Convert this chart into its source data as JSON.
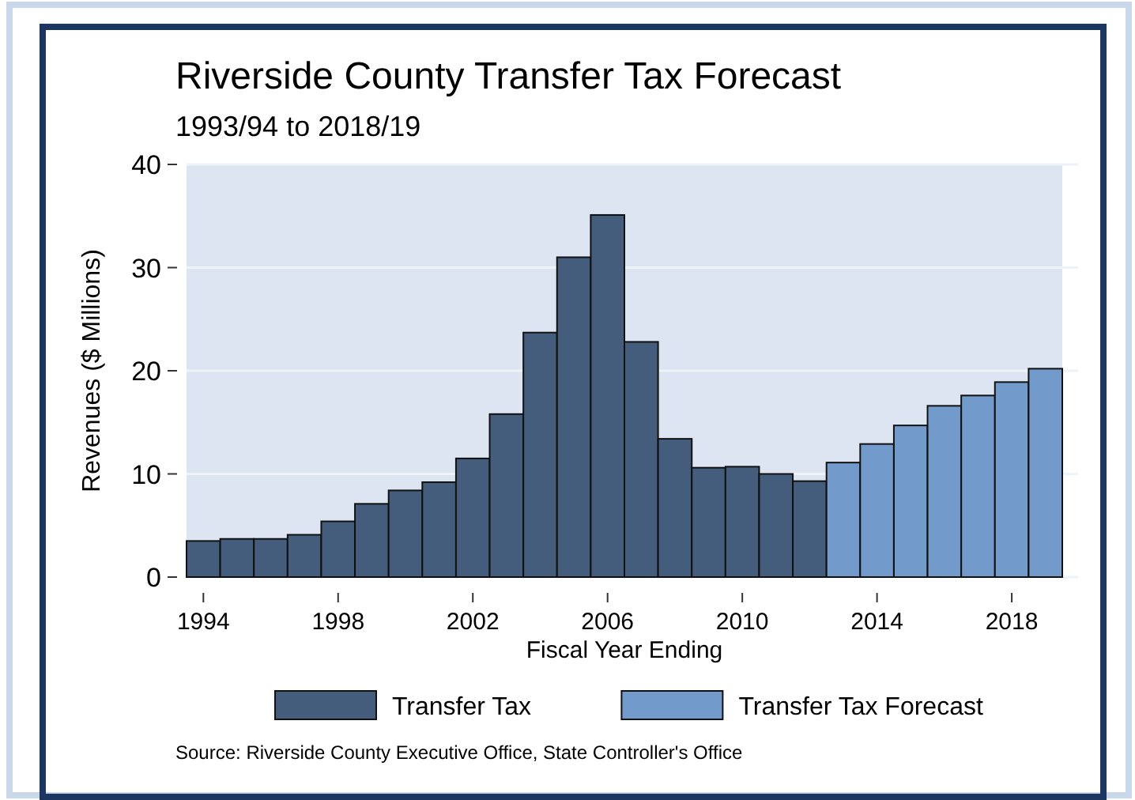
{
  "chart_data": {
    "type": "bar",
    "title": "Riverside County Transfer Tax Forecast",
    "subtitle": "1993/94 to 2018/19",
    "xlabel": "Fiscal Year Ending",
    "ylabel": "Revenues ($ Millions)",
    "x": [
      1994,
      1995,
      1996,
      1997,
      1998,
      1999,
      2000,
      2001,
      2002,
      2003,
      2004,
      2005,
      2006,
      2007,
      2008,
      2009,
      2010,
      2011,
      2012,
      2013,
      2014,
      2015,
      2016,
      2017,
      2018,
      2019
    ],
    "series": [
      {
        "name": "Transfer Tax",
        "color": "#445d7c",
        "values": [
          3.5,
          3.7,
          3.7,
          4.1,
          5.4,
          7.1,
          8.4,
          9.2,
          11.5,
          15.8,
          23.7,
          31.0,
          35.1,
          22.8,
          13.4,
          10.6,
          10.7,
          10.0,
          9.3,
          null,
          null,
          null,
          null,
          null,
          null,
          null
        ]
      },
      {
        "name": "Transfer Tax Forecast",
        "color": "#729bcc",
        "values": [
          null,
          null,
          null,
          null,
          null,
          null,
          null,
          null,
          null,
          null,
          null,
          null,
          null,
          null,
          null,
          null,
          null,
          null,
          null,
          11.1,
          12.9,
          14.7,
          16.6,
          17.6,
          18.9,
          20.2
        ]
      }
    ],
    "xlim": [
      1993.5,
      2019.5
    ],
    "xticks": [
      1994,
      1998,
      2002,
      2006,
      2010,
      2014,
      2018
    ],
    "ylim": [
      0,
      40
    ],
    "yticks": [
      0,
      10,
      20,
      30,
      40
    ],
    "grid": "y",
    "legend": "bottom",
    "annotations": [
      "Source: Riverside County Executive Office, State Controller's Office"
    ]
  }
}
